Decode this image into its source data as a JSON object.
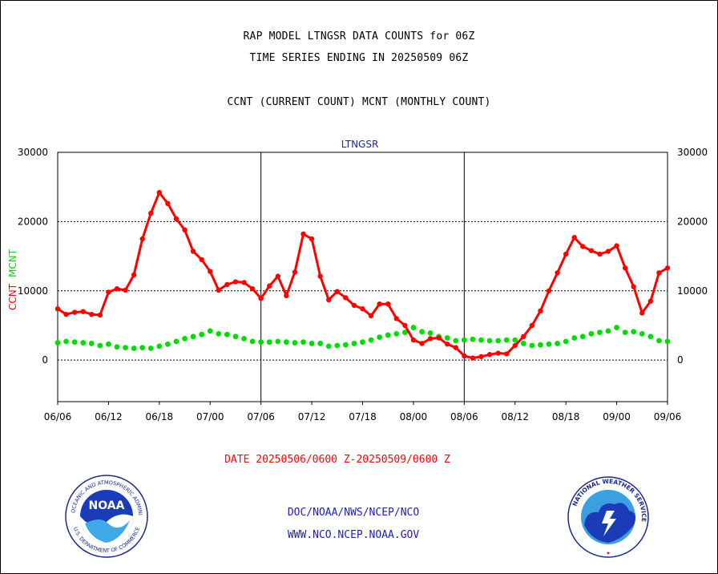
{
  "header": {
    "title_line1": "RAP MODEL LTNGSR DATA COUNTS for 06Z",
    "title_line2": "TIME SERIES ENDING IN 20250509 06Z",
    "legend_line": "CCNT (CURRENT COUNT) MCNT (MONTHLY COUNT)"
  },
  "footer": {
    "date_range": "DATE 20250506/0600 Z-20250509/0600 Z",
    "org_line1": "DOC/NOAA/NWS/NCEP/NCO",
    "org_line2": "WWW.NCO.NCEP.NOAA.GOV"
  },
  "logos": {
    "noaa_text": "NOAA",
    "noaa_ring_top": "NATIONAL OCEANIC AND ATMOSPHERIC ADMINISTRATION",
    "noaa_ring_bottom": "U.S. DEPARTMENT OF COMMERCE",
    "nws_ring": "NATIONAL WEATHER SERVICE"
  },
  "colors": {
    "ccnt": "#ff0000",
    "mcnt": "#00dd00",
    "subtitle": "#1f1fd0",
    "org": "#2020c0"
  },
  "chart_data": {
    "type": "line",
    "title": "LTNGSR",
    "ylabel_series": [
      "CCNT",
      "MCNT"
    ],
    "ylim": [
      -6000,
      30000
    ],
    "yticks": [
      0,
      10000,
      20000,
      30000
    ],
    "ytick_labels": [
      "0",
      "10000",
      "20000",
      "30000"
    ],
    "xtick_labels": [
      "06/06",
      "06/12",
      "06/18",
      "07/00",
      "07/06",
      "07/12",
      "07/18",
      "08/00",
      "08/06",
      "08/12",
      "08/18",
      "09/00",
      "09/06"
    ],
    "x_interval_hours": 1,
    "grid": "dotted horizontal at 10000 and 20000, solid at 0; vertical at 07/06 and 08/06",
    "series": [
      {
        "name": "CCNT",
        "color": "#ff0000",
        "values": [
          7400,
          6600,
          6900,
          7000,
          6600,
          6500,
          9800,
          10300,
          10100,
          12300,
          17500,
          21200,
          24200,
          22600,
          20400,
          18800,
          15700,
          14500,
          12800,
          10100,
          10900,
          11300,
          11200,
          10300,
          8900,
          10700,
          12100,
          9300,
          12700,
          18200,
          17500,
          12100,
          8700,
          9900,
          9000,
          7900,
          7400,
          6400,
          8100,
          8100,
          6000,
          5000,
          2900,
          2400,
          3100,
          3200,
          2300,
          1800,
          600,
          300,
          500,
          800,
          1000,
          900,
          2100,
          3400,
          5000,
          7100,
          10000,
          12600,
          15300,
          17700,
          16400,
          15800,
          15300,
          15700,
          16500,
          13300,
          10600,
          6800,
          8500,
          12600,
          13300
        ]
      },
      {
        "name": "MCNT",
        "color": "#00dd00",
        "values": [
          2500,
          2700,
          2600,
          2500,
          2400,
          2100,
          2300,
          1900,
          1800,
          1700,
          1800,
          1700,
          2000,
          2300,
          2700,
          3100,
          3400,
          3700,
          4200,
          3800,
          3700,
          3400,
          3100,
          2700,
          2600,
          2600,
          2700,
          2600,
          2500,
          2600,
          2400,
          2400,
          2000,
          2100,
          2200,
          2400,
          2600,
          2900,
          3300,
          3600,
          3800,
          4000,
          4700,
          4100,
          3900,
          3400,
          3200,
          2800,
          2900,
          3000,
          2900,
          2800,
          2800,
          2900,
          2900,
          2400,
          2100,
          2200,
          2300,
          2400,
          2700,
          3200,
          3400,
          3800,
          4000,
          4200,
          4700,
          4000,
          4100,
          3800,
          3400,
          2800,
          2700
        ]
      }
    ]
  }
}
